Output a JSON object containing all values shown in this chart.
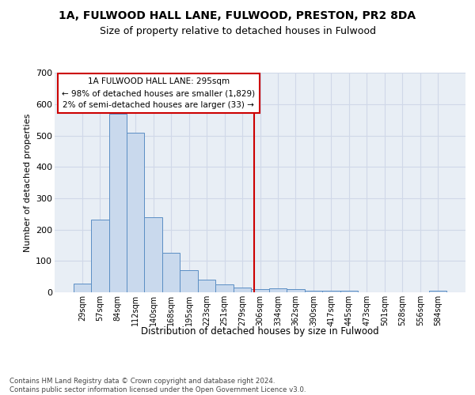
{
  "title_line1": "1A, FULWOOD HALL LANE, FULWOOD, PRESTON, PR2 8DA",
  "title_line2": "Size of property relative to detached houses in Fulwood",
  "xlabel": "Distribution of detached houses by size in Fulwood",
  "ylabel": "Number of detached properties",
  "bar_labels": [
    "29sqm",
    "57sqm",
    "84sqm",
    "112sqm",
    "140sqm",
    "168sqm",
    "195sqm",
    "223sqm",
    "251sqm",
    "279sqm",
    "306sqm",
    "334sqm",
    "362sqm",
    "390sqm",
    "417sqm",
    "445sqm",
    "473sqm",
    "501sqm",
    "528sqm",
    "556sqm",
    "584sqm"
  ],
  "bar_values": [
    28,
    232,
    570,
    510,
    240,
    125,
    70,
    40,
    25,
    15,
    10,
    12,
    10,
    5,
    5,
    5,
    0,
    0,
    0,
    0,
    5
  ],
  "bar_color": "#c9d9ed",
  "bar_edge_color": "#5b8ec4",
  "grid_color": "#d0d8e8",
  "background_color": "#e8eef5",
  "vline_x": 9.67,
  "vline_color": "#cc0000",
  "annotation_text": "1A FULWOOD HALL LANE: 295sqm\n← 98% of detached houses are smaller (1,829)\n2% of semi-detached houses are larger (33) →",
  "annotation_box_color": "#ffffff",
  "annotation_box_edge": "#cc0000",
  "footer_text": "Contains HM Land Registry data © Crown copyright and database right 2024.\nContains public sector information licensed under the Open Government Licence v3.0.",
  "ylim": [
    0,
    700
  ],
  "yticks": [
    0,
    100,
    200,
    300,
    400,
    500,
    600,
    700
  ],
  "title_fontsize": 10,
  "subtitle_fontsize": 9
}
